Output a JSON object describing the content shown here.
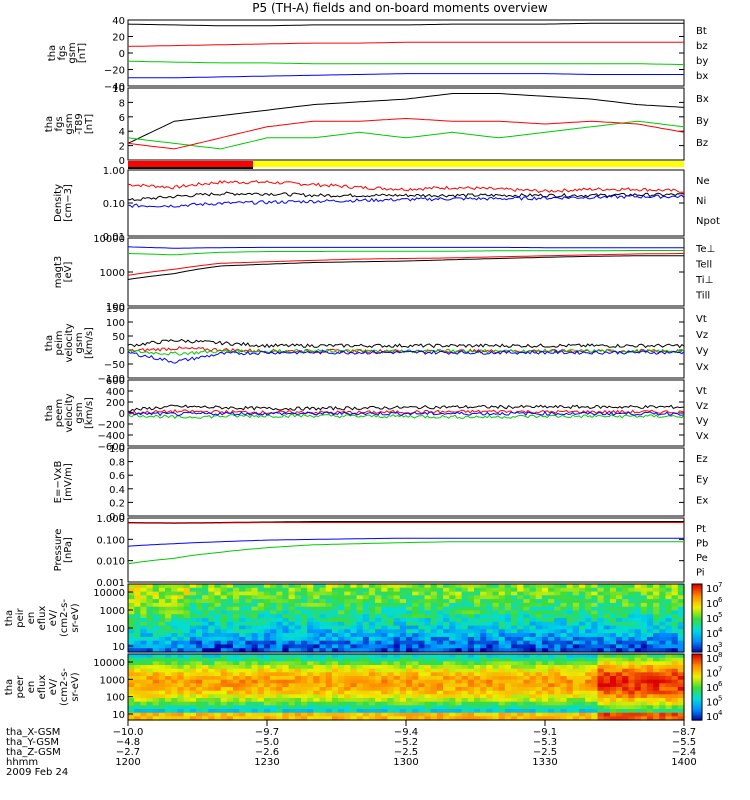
{
  "title": "P5 (TH-A) fields and on-board moments overview",
  "chart_data": {
    "type": "line",
    "panels": [
      {
        "id": "fgs_gsm",
        "ylabel": [
          "tha",
          "fgs",
          "gsm",
          "[nT]"
        ],
        "ylim": [
          -40,
          40
        ],
        "ticks": [
          "40",
          "20",
          "0",
          "−20",
          "−40"
        ],
        "series": [
          {
            "name": "Bt",
            "color": "#000000",
            "values": [
              35,
              34,
              33,
              33,
              34,
              34,
              34,
              35,
              35,
              35,
              36,
              36,
              36
            ]
          },
          {
            "name": "bz",
            "color": "#ff0000",
            "values": [
              8,
              9,
              10,
              11,
              12,
              12,
              13,
              13,
              13,
              13,
              13,
              13,
              13
            ]
          },
          {
            "name": "by",
            "color": "#00cc00",
            "values": [
              -10,
              -11,
              -12,
              -12,
              -13,
              -13,
              -13,
              -13,
              -13,
              -13,
              -13,
              -13,
              -14
            ]
          },
          {
            "name": "bx",
            "color": "#0000ff",
            "values": [
              -30,
              -30,
              -29,
              -28,
              -27,
              -26,
              -25,
              -25,
              -25,
              -25,
              -26,
              -26,
              -26
            ]
          }
        ]
      },
      {
        "id": "fgs_gsm_dB",
        "ylabel": [
          "tha",
          "fgs",
          "gsm",
          "-T89",
          "[nT]"
        ],
        "ylim": [
          -1,
          12
        ],
        "ticks": [
          "10",
          "8",
          "6",
          "4",
          "2",
          "0"
        ],
        "series": [
          {
            "name": "Bx",
            "color": "#000000",
            "values": [
              2,
              6,
              7,
              8,
              9,
              9.5,
              10,
              11,
              11,
              10.5,
              10,
              9,
              8.5
            ]
          },
          {
            "name": "By",
            "color": "#00cc00",
            "values": [
              3,
              2,
              1,
              3,
              3,
              4,
              3,
              4,
              3,
              4,
              5,
              6,
              5
            ]
          },
          {
            "name": "Bz",
            "color": "#ff0000",
            "values": [
              2,
              1,
              3,
              5,
              6,
              6,
              6.5,
              6,
              6,
              5.5,
              6,
              5.5,
              4
            ]
          }
        ]
      },
      {
        "id": "density",
        "ylabel": [
          "Density",
          "[cm−3]"
        ],
        "ylim": [
          0.01,
          1.5
        ],
        "log": true,
        "ticks": [
          "1.00",
          "0.10",
          "0.01"
        ],
        "series": [
          {
            "name": "Ne",
            "color": "#ff0000",
            "values": [
              0.5,
              0.4,
              0.6,
              0.6,
              0.5,
              0.4,
              0.35,
              0.4,
              0.35,
              0.3,
              0.35,
              0.35,
              0.3
            ]
          },
          {
            "name": "Ni",
            "color": "#000000",
            "values": [
              0.15,
              0.2,
              0.25,
              0.25,
              0.22,
              0.22,
              0.22,
              0.22,
              0.22,
              0.22,
              0.22,
              0.23,
              0.23
            ]
          },
          {
            "name": "Npot",
            "color": "#0000ff",
            "values": [
              0.1,
              0.1,
              0.12,
              0.13,
              0.14,
              0.15,
              0.16,
              0.17,
              0.17,
              0.18,
              0.19,
              0.2,
              0.2
            ]
          }
        ]
      },
      {
        "id": "temp",
        "ylabel": [
          "magt3",
          "[eV]"
        ],
        "ylim": [
          100,
          10000
        ],
        "log": true,
        "ticks": [
          "10000",
          "1000",
          "100"
        ],
        "series": [
          {
            "name": "Te⊥",
            "color": "#ff0000",
            "values": [
              800,
              1200,
              1800,
              2000,
              2200,
              2400,
              2500,
              2600,
              2800,
              3000,
              3200,
              3400,
              3500
            ]
          },
          {
            "name": "Tell",
            "color": "#000000",
            "values": [
              600,
              900,
              1500,
              1700,
              1900,
              2000,
              2100,
              2300,
              2500,
              2700,
              2900,
              3000,
              3000
            ]
          },
          {
            "name": "Ti⊥",
            "color": "#0000ff",
            "values": [
              5500,
              5000,
              5200,
              5300,
              5300,
              5300,
              5300,
              5300,
              5300,
              5200,
              5200,
              5200,
              5200
            ]
          },
          {
            "name": "Till",
            "color": "#00cc00",
            "values": [
              3500,
              3200,
              3800,
              4000,
              4000,
              4100,
              4100,
              4100,
              4200,
              4200,
              4200,
              4300,
              4300
            ]
          }
        ]
      },
      {
        "id": "peim_vel",
        "ylabel": [
          "tha",
          "peim",
          "velocity",
          "gsm",
          "[km/s]"
        ],
        "ylim": [
          -100,
          160
        ],
        "ticks": [
          "150",
          "100",
          "50",
          "0",
          "−50",
          "−100"
        ],
        "series": [
          {
            "name": "Vt",
            "color": "#000000",
            "values": [
              20,
              40,
              30,
              20,
              20,
              20,
              20,
              20,
              20,
              20,
              20,
              20,
              20
            ]
          },
          {
            "name": "Vz",
            "color": "#ff0000",
            "values": [
              0,
              10,
              5,
              0,
              0,
              0,
              0,
              0,
              0,
              0,
              0,
              0,
              0
            ]
          },
          {
            "name": "Vy",
            "color": "#00cc00",
            "values": [
              0,
              -10,
              0,
              0,
              0,
              0,
              0,
              0,
              0,
              0,
              0,
              0,
              0
            ]
          },
          {
            "name": "Vx",
            "color": "#0000ff",
            "values": [
              -5,
              -40,
              -10,
              -5,
              -5,
              -5,
              -5,
              -5,
              -5,
              -5,
              -5,
              -5,
              -5
            ]
          }
        ]
      },
      {
        "id": "peem_vel",
        "ylabel": [
          "tha",
          "peem",
          "velocity",
          "gsm",
          "[km/s]"
        ],
        "ylim": [
          -600,
          600
        ],
        "ticks": [
          "600",
          "400",
          "200",
          "0",
          "−200",
          "−400",
          "−600"
        ],
        "series": [
          {
            "name": "Vt",
            "color": "#000000",
            "values": [
              50,
              120,
              100,
              80,
              80,
              90,
              100,
              110,
              110,
              110,
              110,
              110,
              110
            ]
          },
          {
            "name": "Vz",
            "color": "#ff0000",
            "values": [
              0,
              30,
              20,
              10,
              10,
              10,
              20,
              20,
              30,
              20,
              20,
              20,
              20
            ]
          },
          {
            "name": "Vy",
            "color": "#00cc00",
            "values": [
              -30,
              -80,
              -60,
              -50,
              -50,
              -60,
              -60,
              -70,
              -70,
              -60,
              -60,
              -60,
              -60
            ]
          },
          {
            "name": "Vx",
            "color": "#0000ff",
            "values": [
              -10,
              -20,
              -10,
              -10,
              -10,
              -10,
              -10,
              -10,
              -10,
              -10,
              -10,
              -10,
              -10
            ]
          }
        ]
      },
      {
        "id": "efield",
        "ylabel": [
          "E=−VxB",
          "[mV/m]"
        ],
        "ylim": [
          0,
          1
        ],
        "ticks": [
          "1.0",
          "0.8",
          "0.6",
          "0.4",
          "0.2",
          "0.0"
        ],
        "series": [
          {
            "name": "Ez",
            "color": "#ff0000",
            "values": []
          },
          {
            "name": "Ey",
            "color": "#00cc00",
            "values": []
          },
          {
            "name": "Ex",
            "color": "#0000ff",
            "values": []
          }
        ]
      },
      {
        "id": "pressure",
        "ylabel": [
          "Pressure",
          "[nPa]"
        ],
        "ylim": [
          0.001,
          1.5
        ],
        "log": true,
        "ticks": [
          "1.000",
          "0.100",
          "0.010",
          "0.001"
        ],
        "series": [
          {
            "name": "Pt",
            "color": "#000000",
            "values": [
              0.9,
              0.85,
              0.9,
              0.95,
              1.0,
              1.0,
              1.0,
              1.0,
              1.0,
              1.0,
              1.0,
              1.0,
              1.0
            ]
          },
          {
            "name": "Pb",
            "color": "#ff0000",
            "values": [
              0.85,
              0.8,
              0.85,
              0.9,
              0.9,
              0.9,
              0.9,
              0.9,
              0.9,
              0.9,
              0.9,
              0.9,
              0.9
            ]
          },
          {
            "name": "Pe",
            "color": "#00cc00",
            "values": [
              0.008,
              0.015,
              0.03,
              0.05,
              0.07,
              0.08,
              0.09,
              0.1,
              0.1,
              0.1,
              0.1,
              0.1,
              0.1
            ]
          },
          {
            "name": "Pi",
            "color": "#0000ff",
            "values": [
              0.06,
              0.08,
              0.1,
              0.12,
              0.13,
              0.14,
              0.15,
              0.15,
              0.15,
              0.15,
              0.15,
              0.15,
              0.15
            ]
          }
        ]
      }
    ],
    "spectrograms": [
      {
        "id": "peir_en_eflux",
        "ylabel": [
          "tha",
          "peir",
          "en",
          "eflux",
          "eV/",
          "(cm2-s-",
          "sr-eV)"
        ],
        "ticks": [
          "10000",
          "1000",
          "100",
          "10"
        ],
        "colorbar": {
          "min_exp": 3,
          "max_exp": 7,
          "labels": [
            "10",
            "10",
            "10",
            "10",
            "10"
          ],
          "exps": [
            "7",
            "6",
            "5",
            "4",
            "3"
          ]
        }
      },
      {
        "id": "peer_en_eflux",
        "ylabel": [
          "tha",
          "peer",
          "en",
          "eflux",
          "eV/",
          "(cm2-s-",
          "sr-eV)"
        ],
        "ticks": [
          "10000",
          "1000",
          "100",
          "10"
        ],
        "colorbar": {
          "min_exp": 4,
          "max_exp": 8,
          "labels": [
            "10",
            "10",
            "10",
            "10",
            "10"
          ],
          "exps": [
            "8",
            "7",
            "6",
            "5",
            "4"
          ]
        }
      }
    ],
    "xaxis": {
      "rows": [
        {
          "label": "tha_X-GSM",
          "values": [
            "−10.0",
            "−9.7",
            "−9.4",
            "−9.1",
            "−8.7"
          ]
        },
        {
          "label": "tha_Y-GSM",
          "values": [
            "−4.8",
            "−5.0",
            "−5.2",
            "−5.3",
            "−5.5"
          ]
        },
        {
          "label": "tha_Z-GSM",
          "values": [
            "−2.7",
            "−2.6",
            "−2.5",
            "−2.5",
            "−2.4"
          ]
        },
        {
          "label": "hhmm",
          "values": [
            "1200",
            "1230",
            "1300",
            "1330",
            "1400"
          ]
        }
      ],
      "date": "2009 Feb 24"
    }
  }
}
